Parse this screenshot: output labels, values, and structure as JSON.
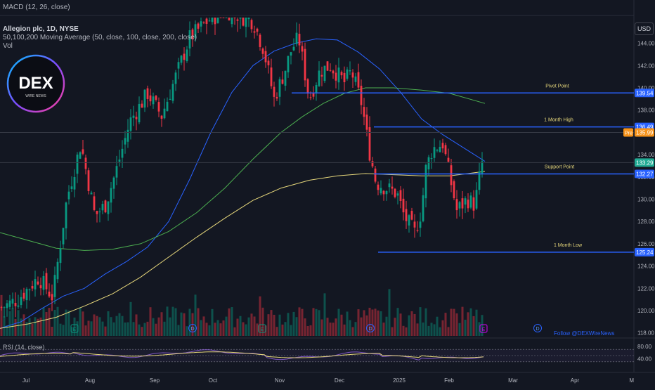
{
  "header": {
    "macd_label": "MACD (12, 26, close)",
    "symbol_title": "Allegion plc, 1D, NYSE",
    "ma_label": "50,100,200 Moving Average (50, close, 100, close, 200, close)",
    "vol_label": "Vol",
    "rsi_label": "RSI (14, close)",
    "currency_button": "USD",
    "follow_text": "Follow @DEXWireNews"
  },
  "logo": {
    "main": "DEX",
    "sub": "WIRE NEWS"
  },
  "colors": {
    "background": "#131722",
    "up": "#089981",
    "down": "#f23645",
    "ma50": "#2962ff",
    "ma100": "#4caf50",
    "ma200": "#e6d77b",
    "level_line": "#2962ff",
    "rsi_line": "#7e57c2",
    "rsi_ma": "#e6d77b",
    "pre_badge": "#f7931a",
    "price_badge": "#22ab94"
  },
  "chart_data": {
    "type": "candlestick",
    "y_axis": {
      "min": 117.6,
      "max": 146.5,
      "ticks": [
        144.0,
        142.0,
        140.0,
        138.0,
        136.0,
        134.0,
        132.0,
        130.0,
        128.0,
        126.0,
        124.0,
        122.0,
        120.0,
        118.0
      ]
    },
    "x_axis": {
      "ticks": [
        "Jul",
        "Aug",
        "Sep",
        "Oct",
        "Nov",
        "Dec",
        "2025",
        "Feb",
        "Mar",
        "Apr",
        "M"
      ]
    },
    "levels": [
      {
        "label": "Pivot Point",
        "value": 139.54,
        "tag": "139.54"
      },
      {
        "label": "1 Month High",
        "value": 136.49,
        "tag": "136.49"
      },
      {
        "label": "Support Point",
        "value": 132.27,
        "tag": "132.27"
      },
      {
        "label": "1 Month Low",
        "value": 125.24,
        "tag": "125.24"
      }
    ],
    "price_tags": [
      {
        "label": "Pre",
        "value": 135.99,
        "tag": "135.99"
      },
      {
        "label": "",
        "value": 133.29,
        "tag": "133.29"
      }
    ],
    "earnings_markers": [
      "E",
      "E",
      "E",
      "E",
      "E"
    ],
    "dividend_markers": [
      "D",
      "D",
      "D"
    ],
    "moving_averages": [
      {
        "name": "MA50",
        "points": [
          [
            0,
            118.4
          ],
          [
            30,
            119.0
          ],
          [
            60,
            120.2
          ],
          [
            90,
            121.3
          ],
          [
            120,
            122.0
          ],
          [
            150,
            123.3
          ],
          [
            180,
            124.4
          ],
          [
            210,
            125.7
          ],
          [
            240,
            128.0
          ],
          [
            270,
            131.8
          ],
          [
            300,
            136.0
          ],
          [
            330,
            139.6
          ],
          [
            360,
            142.0
          ],
          [
            390,
            143.3
          ],
          [
            420,
            144.0
          ],
          [
            450,
            144.4
          ],
          [
            480,
            144.3
          ],
          [
            510,
            143.2
          ],
          [
            540,
            141.7
          ],
          [
            570,
            139.6
          ],
          [
            600,
            137.2
          ],
          [
            630,
            135.8
          ],
          [
            660,
            134.6
          ],
          [
            690,
            133.4
          ]
        ]
      },
      {
        "name": "MA100",
        "points": [
          [
            0,
            127.0
          ],
          [
            40,
            126.3
          ],
          [
            80,
            125.6
          ],
          [
            120,
            125.4
          ],
          [
            160,
            125.5
          ],
          [
            200,
            126.0
          ],
          [
            240,
            127.1
          ],
          [
            280,
            128.8
          ],
          [
            320,
            131.0
          ],
          [
            360,
            133.6
          ],
          [
            400,
            136.0
          ],
          [
            430,
            137.4
          ],
          [
            460,
            138.6
          ],
          [
            490,
            139.5
          ],
          [
            520,
            140.0
          ],
          [
            560,
            140.0
          ],
          [
            600,
            139.8
          ],
          [
            640,
            139.5
          ],
          [
            690,
            138.6
          ]
        ]
      },
      {
        "name": "MA200",
        "points": [
          [
            0,
            118.4
          ],
          [
            40,
            118.8
          ],
          [
            80,
            119.4
          ],
          [
            120,
            120.4
          ],
          [
            160,
            121.5
          ],
          [
            200,
            123.0
          ],
          [
            240,
            124.8
          ],
          [
            280,
            126.6
          ],
          [
            320,
            128.3
          ],
          [
            360,
            129.9
          ],
          [
            400,
            131.0
          ],
          [
            440,
            131.7
          ],
          [
            480,
            132.1
          ],
          [
            520,
            132.3
          ],
          [
            560,
            132.2
          ],
          [
            600,
            132.1
          ],
          [
            640,
            132.1
          ],
          [
            690,
            132.5
          ]
        ]
      }
    ],
    "rsi": {
      "ticks": [
        80.0,
        40.0
      ]
    }
  }
}
